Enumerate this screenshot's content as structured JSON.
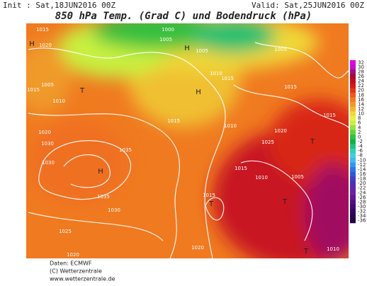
{
  "header": {
    "init": "Init : Sat,18JUN2016 00Z",
    "valid": "Valid: Sat,25JUN2016 00Z",
    "title": "850 hPa Temp. (Grad C) und Bodendruck (hPa)"
  },
  "colorbar": {
    "ticks": [
      32,
      30,
      28,
      26,
      24,
      22,
      20,
      18,
      16,
      14,
      12,
      10,
      8,
      6,
      4,
      2,
      0,
      -2,
      -4,
      -6,
      -8,
      -10,
      -12,
      -14,
      -16,
      -18,
      -20,
      -22,
      -24,
      -26,
      -28,
      -30,
      -32,
      -34,
      -36
    ],
    "colors": [
      "#e000e0",
      "#c010c8",
      "#a01070",
      "#a80838",
      "#c01020",
      "#d81818",
      "#e83418",
      "#f05820",
      "#f07c24",
      "#f09a2a",
      "#f0b830",
      "#f0d838",
      "#e8f040",
      "#c8f040",
      "#98e040",
      "#60d040",
      "#30c040",
      "#10b050",
      "#20c080",
      "#30d0b0",
      "#40d0e0",
      "#40b8f0",
      "#3098f0",
      "#2878e0",
      "#3058d0",
      "#4040c0",
      "#5030b0",
      "#6028a8",
      "#7020a0",
      "#601890",
      "#501080",
      "#400c70",
      "#300860",
      "#280650",
      "#200440"
    ]
  },
  "isobars": [
    "1015",
    "1020",
    "1015",
    "1010",
    "1005",
    "1020",
    "1030",
    "1030",
    "1035",
    "1035",
    "1030",
    "1025",
    "1020",
    "1000",
    "1005",
    "1005",
    "1015",
    "1010",
    "1015",
    "1010",
    "1020",
    "1025",
    "1015",
    "1010",
    "1015",
    "1005",
    "1020",
    "1015",
    "1010",
    "1015",
    "1015",
    "1005"
  ],
  "centers": [
    "H",
    "H",
    "H",
    "H",
    "T",
    "T",
    "T",
    "T",
    "T"
  ],
  "footer": {
    "data": "Daten: ECMWF",
    "copyright": "(C) Wetterzentrale",
    "url": "www.wetterzentrale.de"
  }
}
